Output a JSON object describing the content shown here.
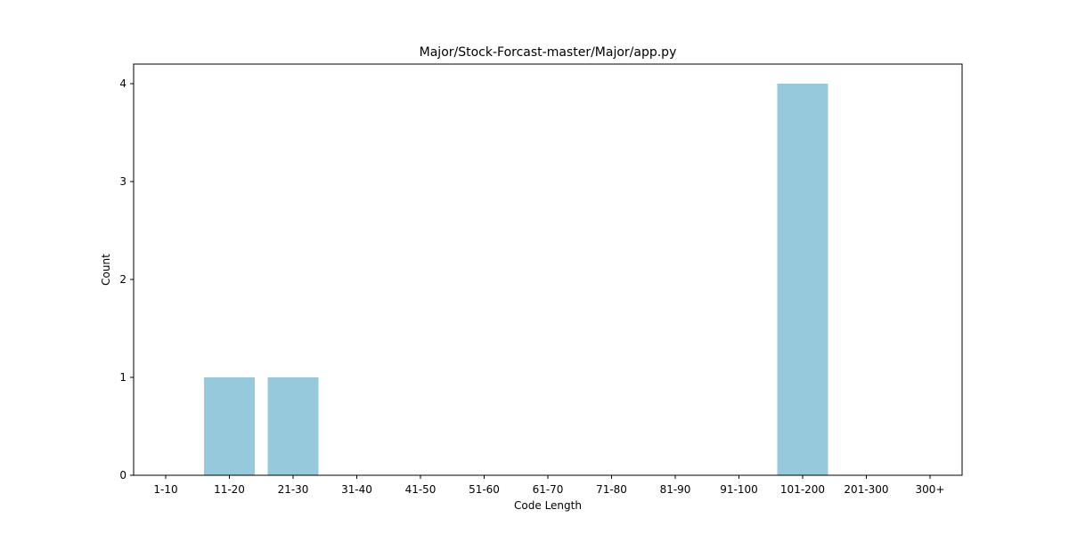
{
  "chart_data": {
    "type": "bar",
    "title": "Major/Stock-Forcast-master/Major/app.py",
    "xlabel": "Code Length",
    "ylabel": "Count",
    "categories": [
      "1-10",
      "11-20",
      "21-30",
      "31-40",
      "41-50",
      "51-60",
      "61-70",
      "71-80",
      "81-90",
      "91-100",
      "101-200",
      "201-300",
      "300+"
    ],
    "values": [
      0,
      1,
      1,
      0,
      0,
      0,
      0,
      0,
      0,
      0,
      4,
      0,
      0
    ],
    "ylim": [
      0,
      4.2
    ],
    "yticks": [
      0,
      1,
      2,
      3,
      4
    ],
    "bar_color": "#96c9dc",
    "grid": false,
    "legend": "none"
  }
}
